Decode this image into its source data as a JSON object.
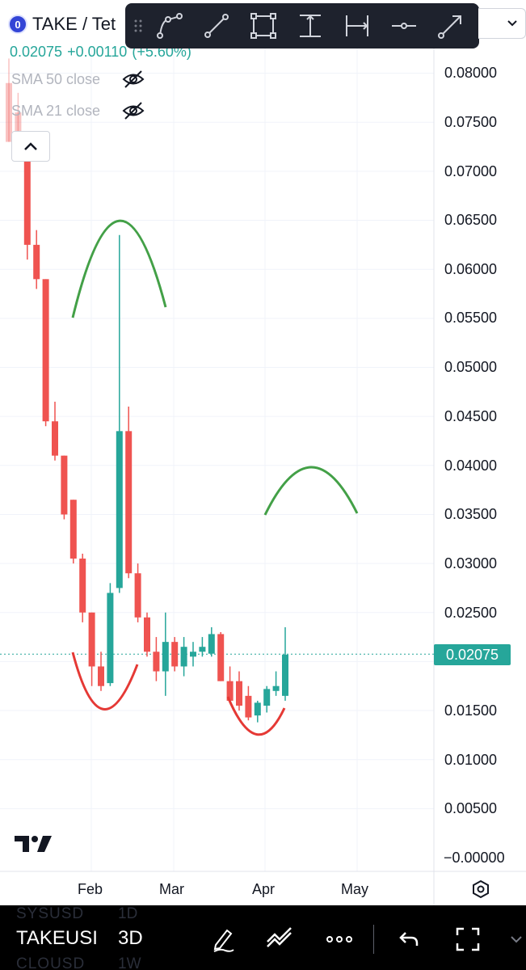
{
  "symbol": {
    "logo_letter": "0",
    "name": "TAKE / Tet"
  },
  "price_line": {
    "last": "0.02075",
    "change": "+0.00110",
    "change_pct": "(+5.60%)"
  },
  "indicators": [
    {
      "label": "SMA 50 close",
      "icon": "eye-off-icon"
    },
    {
      "label": "SMA 21 close",
      "icon": "eye-off-icon"
    }
  ],
  "drawing_toolbar": {
    "tools": [
      "path-icon",
      "trend-line-icon",
      "rectangle-icon",
      "price-range-icon",
      "date-range-icon",
      "horizontal-line-icon",
      "arrow-icon"
    ]
  },
  "top_right_dropdown": {
    "icon": "chevron-down-icon"
  },
  "price_axis": [
    "0.08000",
    "0.07500",
    "0.07000",
    "0.06500",
    "0.06000",
    "0.05500",
    "0.05000",
    "0.04500",
    "0.04000",
    "0.03500",
    "0.03000",
    "0.02500",
    "0.01500",
    "0.01000",
    "0.00500",
    "−0.00000"
  ],
  "time_axis": [
    "Feb",
    "Mar",
    "Apr",
    "May"
  ],
  "last_price_tag": "0.02075",
  "colors": {
    "up": "#26a69a",
    "down": "#ef5350",
    "arc_green": "#43a047",
    "arc_red": "#e53935",
    "toolbar": "#1e222d"
  },
  "chart_data": {
    "type": "candlestick",
    "title": "TAKE / Tet",
    "ylim": [
      0,
      0.085
    ],
    "candles": [
      {
        "o": 0.079,
        "h": 0.0815,
        "l": 0.073,
        "c": 0.073
      },
      {
        "o": 0.076,
        "h": 0.078,
        "l": 0.072,
        "c": 0.074
      },
      {
        "o": 0.0735,
        "h": 0.074,
        "l": 0.061,
        "c": 0.0625
      },
      {
        "o": 0.0625,
        "h": 0.064,
        "l": 0.058,
        "c": 0.059
      },
      {
        "o": 0.059,
        "h": 0.059,
        "l": 0.044,
        "c": 0.0445
      },
      {
        "o": 0.0445,
        "h": 0.0465,
        "l": 0.0405,
        "c": 0.041
      },
      {
        "o": 0.041,
        "h": 0.041,
        "l": 0.0345,
        "c": 0.035
      },
      {
        "o": 0.0365,
        "h": 0.0365,
        "l": 0.03,
        "c": 0.0305
      },
      {
        "o": 0.0305,
        "h": 0.031,
        "l": 0.024,
        "c": 0.025
      },
      {
        "o": 0.025,
        "h": 0.025,
        "l": 0.0175,
        "c": 0.0195
      },
      {
        "o": 0.0195,
        "h": 0.021,
        "l": 0.017,
        "c": 0.0175
      },
      {
        "o": 0.0178,
        "h": 0.028,
        "l": 0.0175,
        "c": 0.027
      },
      {
        "o": 0.0275,
        "h": 0.0635,
        "l": 0.027,
        "c": 0.0435
      },
      {
        "o": 0.0435,
        "h": 0.046,
        "l": 0.0285,
        "c": 0.029
      },
      {
        "o": 0.029,
        "h": 0.03,
        "l": 0.024,
        "c": 0.0245
      },
      {
        "o": 0.0245,
        "h": 0.025,
        "l": 0.0205,
        "c": 0.021
      },
      {
        "o": 0.021,
        "h": 0.0225,
        "l": 0.018,
        "c": 0.019
      },
      {
        "o": 0.019,
        "h": 0.025,
        "l": 0.0165,
        "c": 0.022
      },
      {
        "o": 0.022,
        "h": 0.0225,
        "l": 0.019,
        "c": 0.0195
      },
      {
        "o": 0.0195,
        "h": 0.0225,
        "l": 0.0185,
        "c": 0.0215
      },
      {
        "o": 0.0205,
        "h": 0.022,
        "l": 0.0195,
        "c": 0.021
      },
      {
        "o": 0.021,
        "h": 0.0225,
        "l": 0.0205,
        "c": 0.0215
      },
      {
        "o": 0.0208,
        "h": 0.0235,
        "l": 0.0205,
        "c": 0.0228
      },
      {
        "o": 0.0228,
        "h": 0.023,
        "l": 0.018,
        "c": 0.018
      },
      {
        "o": 0.018,
        "h": 0.0195,
        "l": 0.016,
        "c": 0.016
      },
      {
        "o": 0.018,
        "h": 0.019,
        "l": 0.015,
        "c": 0.0155
      },
      {
        "o": 0.0165,
        "h": 0.0175,
        "l": 0.014,
        "c": 0.0143
      },
      {
        "o": 0.0145,
        "h": 0.016,
        "l": 0.0138,
        "c": 0.0158
      },
      {
        "o": 0.0155,
        "h": 0.0175,
        "l": 0.0148,
        "c": 0.0172
      },
      {
        "o": 0.017,
        "h": 0.019,
        "l": 0.0165,
        "c": 0.0175
      },
      {
        "o": 0.0165,
        "h": 0.0235,
        "l": 0.016,
        "c": 0.0207
      }
    ],
    "last_price": 0.02075
  },
  "bottom_bar": {
    "ghost_top_symbol": "SYSUSD",
    "ghost_top_interval": "1D",
    "symbol": "TAKEUSI",
    "interval": "3D",
    "ghost_bottom_symbol": "CLOUSD",
    "ghost_bottom_interval": "1W",
    "icons": [
      "draw-pen-icon",
      "patterns-icon",
      "more-icon",
      "undo-icon",
      "fullscreen-icon"
    ]
  }
}
